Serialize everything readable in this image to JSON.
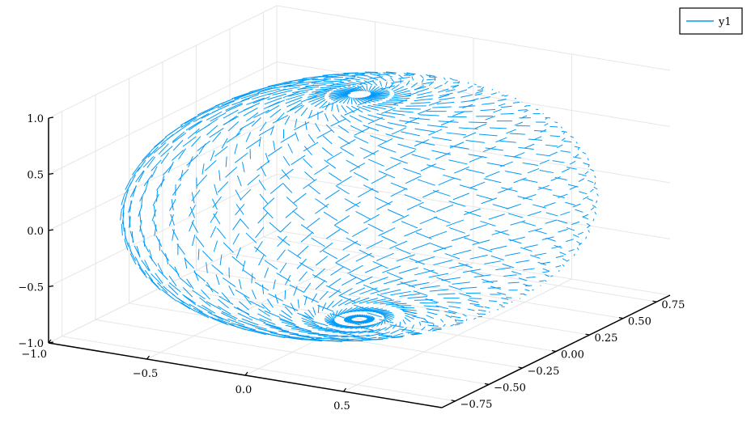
{
  "chart_data": {
    "type": "quiver3d",
    "title": "",
    "xlabel": "",
    "ylabel": "",
    "zlabel": "",
    "grid": true,
    "legend_position": "top-right",
    "series": [
      {
        "name": "y1",
        "color": "#009AFA"
      }
    ],
    "xlim": [
      -1.0,
      1.0
    ],
    "ylim": [
      -0.85,
      0.85
    ],
    "zlim": [
      -1.0,
      1.0
    ],
    "x_ticks": [
      {
        "value": -1.0,
        "label": "−1.0"
      },
      {
        "value": -0.5,
        "label": "−0.5"
      },
      {
        "value": 0.0,
        "label": "0.0"
      },
      {
        "value": 0.5,
        "label": "0.5"
      }
    ],
    "y_ticks": [
      {
        "value": -0.75,
        "label": "−0.75"
      },
      {
        "value": -0.5,
        "label": "−0.50"
      },
      {
        "value": -0.25,
        "label": "−0.25"
      },
      {
        "value": 0.0,
        "label": "0.00"
      },
      {
        "value": 0.25,
        "label": "0.25"
      },
      {
        "value": 0.5,
        "label": "0.50"
      },
      {
        "value": 0.75,
        "label": "0.75"
      }
    ],
    "z_ticks": [
      {
        "value": -1.0,
        "label": "−1.0"
      },
      {
        "value": -0.5,
        "label": "−0.5"
      },
      {
        "value": 0.0,
        "label": "0.0"
      },
      {
        "value": 0.5,
        "label": "0.5"
      },
      {
        "value": 1.0,
        "label": "1.0"
      }
    ],
    "field": {
      "surface": "unit sphere",
      "radius": 1.0,
      "points_per_ring": 40,
      "rings": 32,
      "arrow_length": 0.09
    }
  }
}
